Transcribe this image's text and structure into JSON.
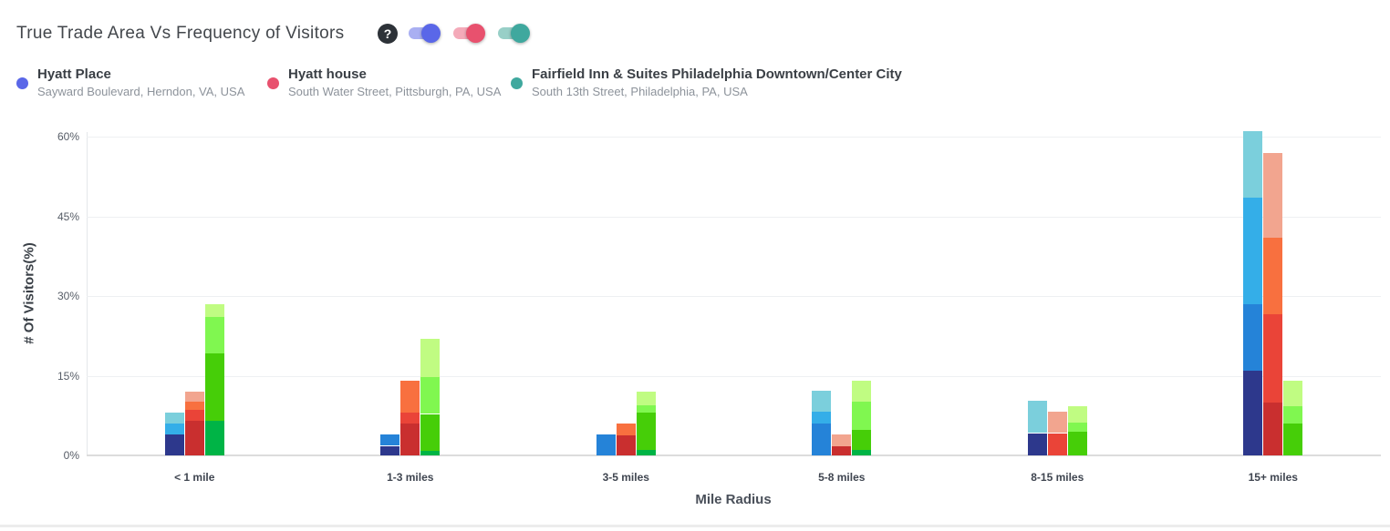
{
  "header": {
    "title": "True Trade Area Vs Frequency of Visitors",
    "help_label": "?",
    "toggles": [
      {
        "series": "Hyatt Place",
        "state": "on",
        "track_color": "#a9aff2",
        "knob_color": "#5a67e8"
      },
      {
        "series": "Hyatt house",
        "state": "on",
        "track_color": "#f4aab9",
        "knob_color": "#e8516e"
      },
      {
        "series": "Fairfield Inn & Suites Philadelphia Downtown/Center City",
        "state": "on",
        "track_color": "#98cfc7",
        "knob_color": "#3fa89e"
      }
    ]
  },
  "legend": [
    {
      "name": "Hyatt Place",
      "address": "Sayward Boulevard, Herndon, VA, USA",
      "color": "#5a67e8"
    },
    {
      "name": "Hyatt house",
      "address": "South Water Street, Pittsburgh, PA, USA",
      "color": "#e8516e"
    },
    {
      "name": "Fairfield Inn & Suites Philadelphia Downtown/Center City",
      "address": "South 13th Street, Philadelphia, PA, USA",
      "color": "#3fa89e"
    }
  ],
  "chart_data": {
    "type": "bar",
    "stacked": true,
    "title": "True Trade Area Vs Frequency of Visitors",
    "xlabel": "Mile Radius",
    "ylabel": "# Of Visitors(%)",
    "ylim": [
      0,
      60
    ],
    "grid": true,
    "yticks": [
      {
        "label": "0%",
        "value": 0
      },
      {
        "label": "15%",
        "value": 15
      },
      {
        "label": "30%",
        "value": 30
      },
      {
        "label": "45%",
        "value": 45
      },
      {
        "label": "60%",
        "value": 60
      }
    ],
    "categories": [
      "< 1 mile",
      "1-3 miles",
      "3-5 miles",
      "5-8 miles",
      "8-15 miles",
      "15+ miles"
    ],
    "shade_note": "each bar is a stack of visit-frequency segments, darkest shade at bottom to lightest at top; shade = index into series palette",
    "series": [
      {
        "name": "Hyatt Place",
        "palette": [
          "#2d388c",
          "#2583d8",
          "#34aee8",
          "#7bcfdc"
        ],
        "bars": [
          {
            "category": "< 1 mile",
            "total": 8,
            "segments": [
              {
                "shade": 0,
                "value": 4
              },
              {
                "shade": 2,
                "value": 2
              },
              {
                "shade": 3,
                "value": 2
              }
            ]
          },
          {
            "category": "1-3 miles",
            "total": 4,
            "segments": [
              {
                "shade": 0,
                "value": 1.8
              },
              {
                "shade": 1,
                "value": 2.2
              }
            ]
          },
          {
            "category": "3-5 miles",
            "total": 4,
            "segments": [
              {
                "shade": 1,
                "value": 4
              }
            ]
          },
          {
            "category": "5-8 miles",
            "total": 12.2,
            "segments": [
              {
                "shade": 1,
                "value": 6
              },
              {
                "shade": 2,
                "value": 2.2
              },
              {
                "shade": 3,
                "value": 4
              }
            ]
          },
          {
            "category": "8-15 miles",
            "total": 10.3,
            "segments": [
              {
                "shade": 0,
                "value": 4.2
              },
              {
                "shade": 3,
                "value": 6.1
              }
            ]
          },
          {
            "category": "15+ miles",
            "total": 61,
            "segments": [
              {
                "shade": 0,
                "value": 16
              },
              {
                "shade": 1,
                "value": 12.5
              },
              {
                "shade": 2,
                "value": 20
              },
              {
                "shade": 3,
                "value": 12.5
              }
            ]
          }
        ]
      },
      {
        "name": "Hyatt house",
        "palette": [
          "#c92f2f",
          "#ea4438",
          "#f8703f",
          "#f2a58f"
        ],
        "bars": [
          {
            "category": "< 1 mile",
            "total": 12,
            "segments": [
              {
                "shade": 0,
                "value": 6.5
              },
              {
                "shade": 1,
                "value": 2
              },
              {
                "shade": 2,
                "value": 1.7
              },
              {
                "shade": 3,
                "value": 1.8
              }
            ]
          },
          {
            "category": "1-3 miles",
            "total": 14,
            "segments": [
              {
                "shade": 0,
                "value": 6
              },
              {
                "shade": 1,
                "value": 2
              },
              {
                "shade": 2,
                "value": 6
              }
            ]
          },
          {
            "category": "3-5 miles",
            "total": 6,
            "segments": [
              {
                "shade": 0,
                "value": 3.8
              },
              {
                "shade": 2,
                "value": 2.2
              }
            ]
          },
          {
            "category": "5-8 miles",
            "total": 4,
            "segments": [
              {
                "shade": 0,
                "value": 1.7
              },
              {
                "shade": 3,
                "value": 2.3
              }
            ]
          },
          {
            "category": "8-15 miles",
            "total": 8.2,
            "segments": [
              {
                "shade": 1,
                "value": 4.2
              },
              {
                "shade": 3,
                "value": 4
              }
            ]
          },
          {
            "category": "15+ miles",
            "total": 57,
            "segments": [
              {
                "shade": 0,
                "value": 10
              },
              {
                "shade": 1,
                "value": 16.5
              },
              {
                "shade": 2,
                "value": 14.5
              },
              {
                "shade": 3,
                "value": 16
              }
            ]
          }
        ]
      },
      {
        "name": "Fairfield Inn & Suites Philadelphia Downtown/Center City",
        "palette": [
          "#00b446",
          "#46ce08",
          "#80f750",
          "#c0fc82"
        ],
        "bars": [
          {
            "category": "< 1 mile",
            "total": 28.4,
            "segments": [
              {
                "shade": 0,
                "value": 6.6
              },
              {
                "shade": 1,
                "value": 12.6
              },
              {
                "shade": 2,
                "value": 6.8
              },
              {
                "shade": 3,
                "value": 2.4
              }
            ]
          },
          {
            "category": "1-3 miles",
            "total": 22,
            "segments": [
              {
                "shade": 0,
                "value": 0.8
              },
              {
                "shade": 1,
                "value": 7
              },
              {
                "shade": 2,
                "value": 7
              },
              {
                "shade": 3,
                "value": 7.2
              }
            ]
          },
          {
            "category": "3-5 miles",
            "total": 12,
            "segments": [
              {
                "shade": 0,
                "value": 1.1
              },
              {
                "shade": 1,
                "value": 6.9
              },
              {
                "shade": 2,
                "value": 1.4
              },
              {
                "shade": 3,
                "value": 2.6
              }
            ]
          },
          {
            "category": "5-8 miles",
            "total": 14.1,
            "segments": [
              {
                "shade": 0,
                "value": 1
              },
              {
                "shade": 1,
                "value": 3.8
              },
              {
                "shade": 2,
                "value": 5.3
              },
              {
                "shade": 3,
                "value": 4
              }
            ]
          },
          {
            "category": "8-15 miles",
            "total": 9.3,
            "segments": [
              {
                "shade": 1,
                "value": 4.5
              },
              {
                "shade": 2,
                "value": 1.7
              },
              {
                "shade": 3,
                "value": 3.1
              }
            ]
          },
          {
            "category": "15+ miles",
            "total": 14,
            "segments": [
              {
                "shade": 1,
                "value": 6
              },
              {
                "shade": 2,
                "value": 3.2
              },
              {
                "shade": 3,
                "value": 4.8
              }
            ]
          }
        ]
      }
    ]
  }
}
